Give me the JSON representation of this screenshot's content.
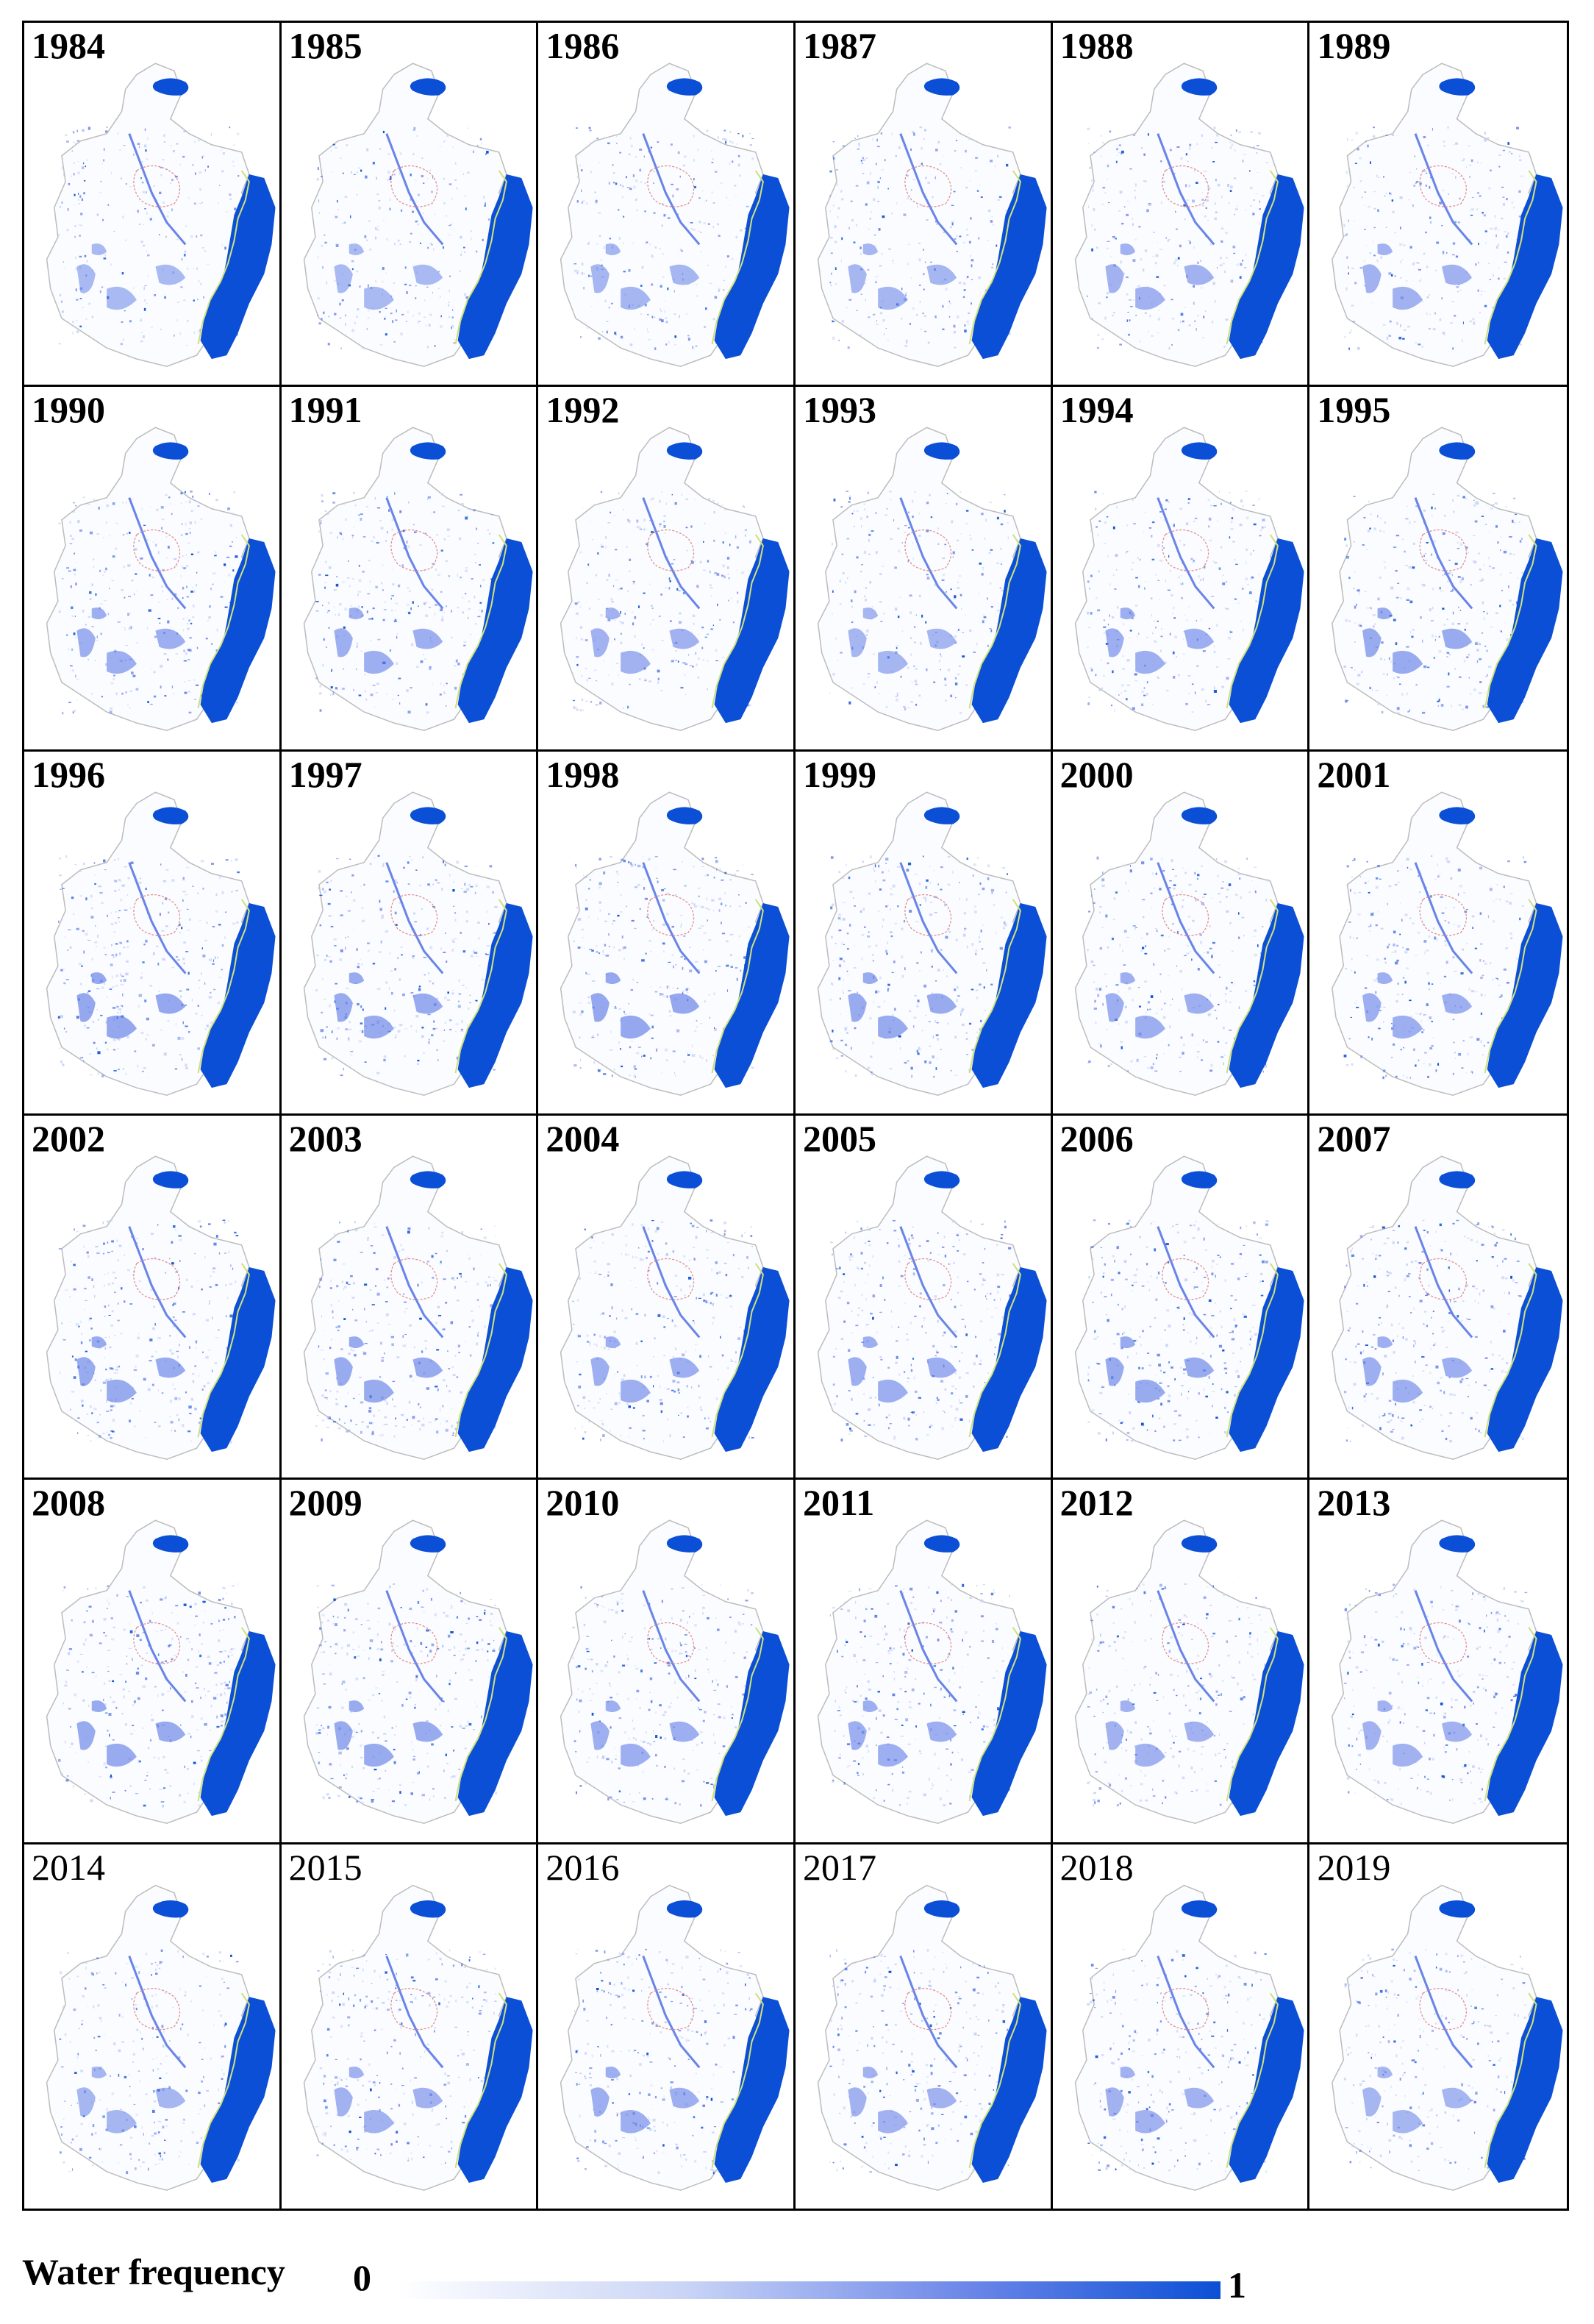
{
  "panels": [
    {
      "year": "1984",
      "style": "bold",
      "level": 0.35
    },
    {
      "year": "1985",
      "style": "bold",
      "level": 0.35
    },
    {
      "year": "1986",
      "style": "bold",
      "level": 0.4
    },
    {
      "year": "1987",
      "style": "bold",
      "level": 0.4
    },
    {
      "year": "1988",
      "style": "bold",
      "level": 0.45
    },
    {
      "year": "1989",
      "style": "bold",
      "level": 0.45
    },
    {
      "year": "1990",
      "style": "bold",
      "level": 0.5
    },
    {
      "year": "1991",
      "style": "bold",
      "level": 0.5
    },
    {
      "year": "1992",
      "style": "bold",
      "level": 0.45
    },
    {
      "year": "1993",
      "style": "bold",
      "level": 0.4
    },
    {
      "year": "1994",
      "style": "bold",
      "level": 0.5
    },
    {
      "year": "1995",
      "style": "bold",
      "level": 0.55
    },
    {
      "year": "1996",
      "style": "bold",
      "level": 0.6
    },
    {
      "year": "1997",
      "style": "bold",
      "level": 0.55
    },
    {
      "year": "1998",
      "style": "bold",
      "level": 0.6
    },
    {
      "year": "1999",
      "style": "bold",
      "level": 0.55
    },
    {
      "year": "2000",
      "style": "bold",
      "level": 0.5
    },
    {
      "year": "2001",
      "style": "bold",
      "level": 0.5
    },
    {
      "year": "2002",
      "style": "bold",
      "level": 0.55
    },
    {
      "year": "2003",
      "style": "bold",
      "level": 0.55
    },
    {
      "year": "2004",
      "style": "bold",
      "level": 0.5
    },
    {
      "year": "2005",
      "style": "bold",
      "level": 0.5
    },
    {
      "year": "2006",
      "style": "bold",
      "level": 0.55
    },
    {
      "year": "2007",
      "style": "bold",
      "level": 0.5
    },
    {
      "year": "2008",
      "style": "bold",
      "level": 0.55
    },
    {
      "year": "2009",
      "style": "bold",
      "level": 0.55
    },
    {
      "year": "2010",
      "style": "bold",
      "level": 0.5
    },
    {
      "year": "2011",
      "style": "bold",
      "level": 0.5
    },
    {
      "year": "2012",
      "style": "bold",
      "level": 0.45
    },
    {
      "year": "2013",
      "style": "bold",
      "level": 0.45
    },
    {
      "year": "2014",
      "style": "plain",
      "level": 0.4
    },
    {
      "year": "2015",
      "style": "plain",
      "level": 0.45
    },
    {
      "year": "2016",
      "style": "plain",
      "level": 0.5
    },
    {
      "year": "2017",
      "style": "plain",
      "level": 0.45
    },
    {
      "year": "2018",
      "style": "plain",
      "level": 0.45
    },
    {
      "year": "2019",
      "style": "plain",
      "level": 0.4
    }
  ],
  "legend": {
    "title": "Water frequency",
    "min_label": "0",
    "max_label": "1",
    "colors": [
      "#ffffff",
      "#c9d4f6",
      "#6a85e8",
      "#0b4fd6"
    ]
  },
  "colors": {
    "water_high": "#0b4fd6",
    "water_mid": "#6a85e8",
    "water_low": "#c9d4f6",
    "boundary": "#bdbdbd",
    "inner_outline": "#e08a8a",
    "coastline": "#cfe07a"
  }
}
